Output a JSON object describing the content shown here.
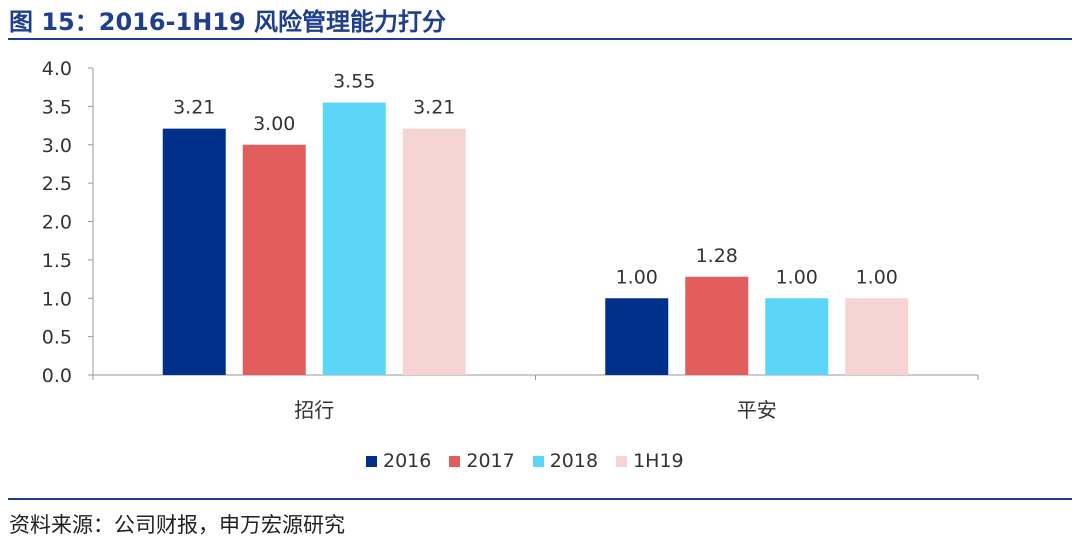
{
  "figure_title": "图 15：2016-1H19 风险管理能力打分",
  "source_text": "资料来源：公司财报，申万宏源研究",
  "colors": {
    "accent": "#1f3e8c",
    "s2016": "#00308a",
    "s2017": "#e25e5e",
    "s2018": "#5bd6f8",
    "s1H19": "#f7d4d4"
  },
  "chart_data": {
    "type": "bar",
    "categories": [
      "招行",
      "平安"
    ],
    "series": [
      {
        "name": "2016",
        "values": [
          3.21,
          1.0
        ],
        "labels": [
          "3.21",
          "1.00"
        ],
        "color": "#00308a"
      },
      {
        "name": "2017",
        "values": [
          3.0,
          1.28
        ],
        "labels": [
          "3.00",
          "1.28"
        ],
        "color": "#e25e5e"
      },
      {
        "name": "2018",
        "values": [
          3.55,
          1.0
        ],
        "labels": [
          "3.55",
          "1.00"
        ],
        "color": "#5bd6f8"
      },
      {
        "name": "1H19",
        "values": [
          3.21,
          1.0
        ],
        "labels": [
          "3.21",
          "1.00"
        ],
        "color": "#f7d4d4"
      }
    ],
    "yticks": [
      "0.0",
      "0.5",
      "1.0",
      "1.5",
      "2.0",
      "2.5",
      "3.0",
      "3.5",
      "4.0"
    ],
    "ylim": [
      0,
      4
    ],
    "legend_position": "bottom",
    "grid": false
  }
}
